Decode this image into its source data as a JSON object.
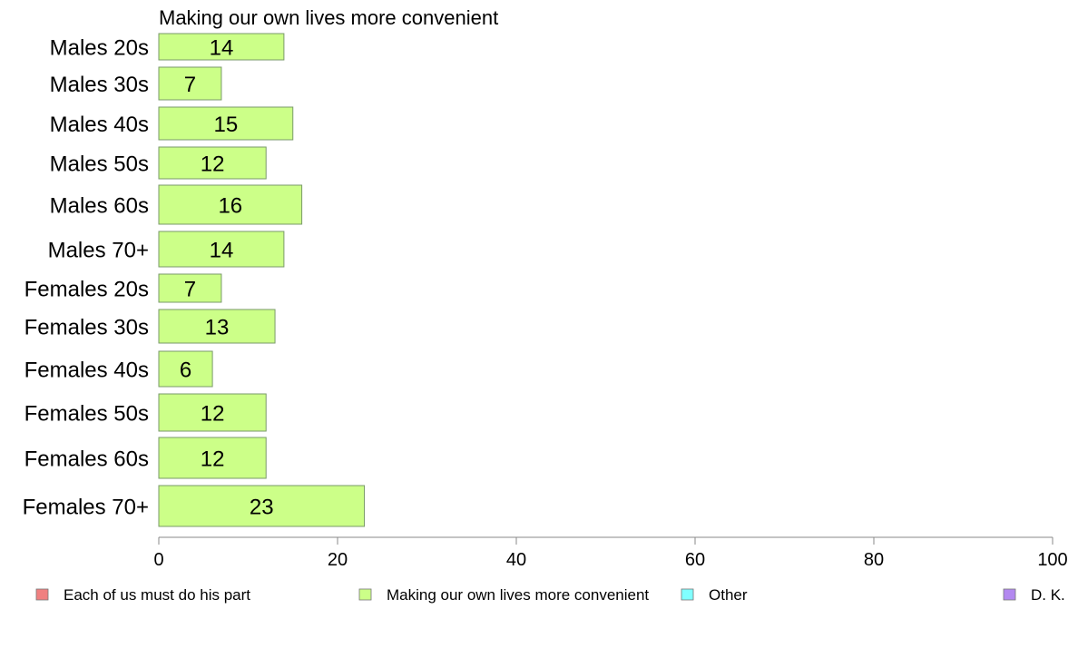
{
  "chart_data": {
    "type": "bar",
    "orientation": "horizontal",
    "title": "Making our own lives more convenient",
    "categories": [
      "Males 20s",
      "Males 30s",
      "Males 40s",
      "Males 50s",
      "Males 60s",
      "Males 70+",
      "Females 20s",
      "Females 30s",
      "Females 40s",
      "Females 50s",
      "Females 60s",
      "Females 70+"
    ],
    "series": [
      {
        "name": "Making our own lives more convenient",
        "color": "#ccff88",
        "values": [
          14,
          7,
          15,
          12,
          16,
          14,
          7,
          13,
          6,
          12,
          12,
          23
        ]
      }
    ],
    "xlim": [
      0,
      100
    ],
    "xticks": [
      0,
      20,
      40,
      60,
      80,
      100
    ],
    "grid": false,
    "legend_placement": "bottom",
    "legend": [
      {
        "label": "Each of us must do his part",
        "color": "#f08080"
      },
      {
        "label": "Making our own lives more convenient",
        "color": "#ccff88"
      },
      {
        "label": "Other",
        "color": "#80ffff"
      },
      {
        "label": "D. K.",
        "color": "#b388f0"
      }
    ]
  }
}
